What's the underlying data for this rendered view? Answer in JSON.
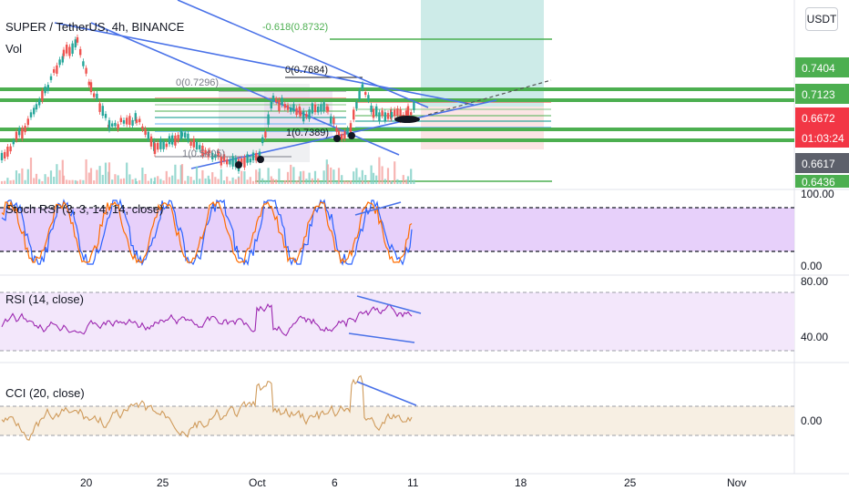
{
  "header": {
    "symbol_title": "SUPER / TetherUS, 4h, BINANCE",
    "volume_label": "Vol",
    "currency_button": "USDT"
  },
  "fib_labels": {
    "ext_top": "-0.618(0.8732)",
    "zero_left": "0(0.7296)",
    "zero_right": "0(0.7684)",
    "one_left": "1(0.5405)",
    "one_right": "1(0.7389)"
  },
  "price_axis": {
    "labels": [
      {
        "text": "0.7404",
        "color": "#4caf50"
      },
      {
        "text": "0.7123",
        "color": "#4caf50"
      },
      {
        "text": "0.6672",
        "color": "#f23645"
      },
      {
        "text": "01:03:24",
        "color": "#f23645"
      },
      {
        "text": "0.6617",
        "color": "#5d606b"
      },
      {
        "text": "0.6436",
        "color": "#4caf50"
      }
    ]
  },
  "panes": {
    "stoch_title": "Stoch RSI (3, 3, 14, 14, close)",
    "stoch_top": "100.00",
    "stoch_bottom": "0.00",
    "rsi_title": "RSI (14, close)",
    "rsi_top": "80.00",
    "rsi_mid": "40.00",
    "cci_title": "CCI (20, close)",
    "cci_mid": "0.00"
  },
  "time_axis": {
    "labels": [
      "20",
      "25",
      "Oct",
      "6",
      "11",
      "18",
      "25",
      "Nov"
    ]
  },
  "colors": {
    "support_green": "#4caf50",
    "trend_blue": "#4a72e8",
    "stoch_bg": "#e1c4f9",
    "rsi_bg": "#f3e7fb",
    "cci_bg": "#f7efe3",
    "target_zone": "#cdebe8",
    "up_candle": "#26a69a",
    "down_candle": "#ef5350"
  }
}
